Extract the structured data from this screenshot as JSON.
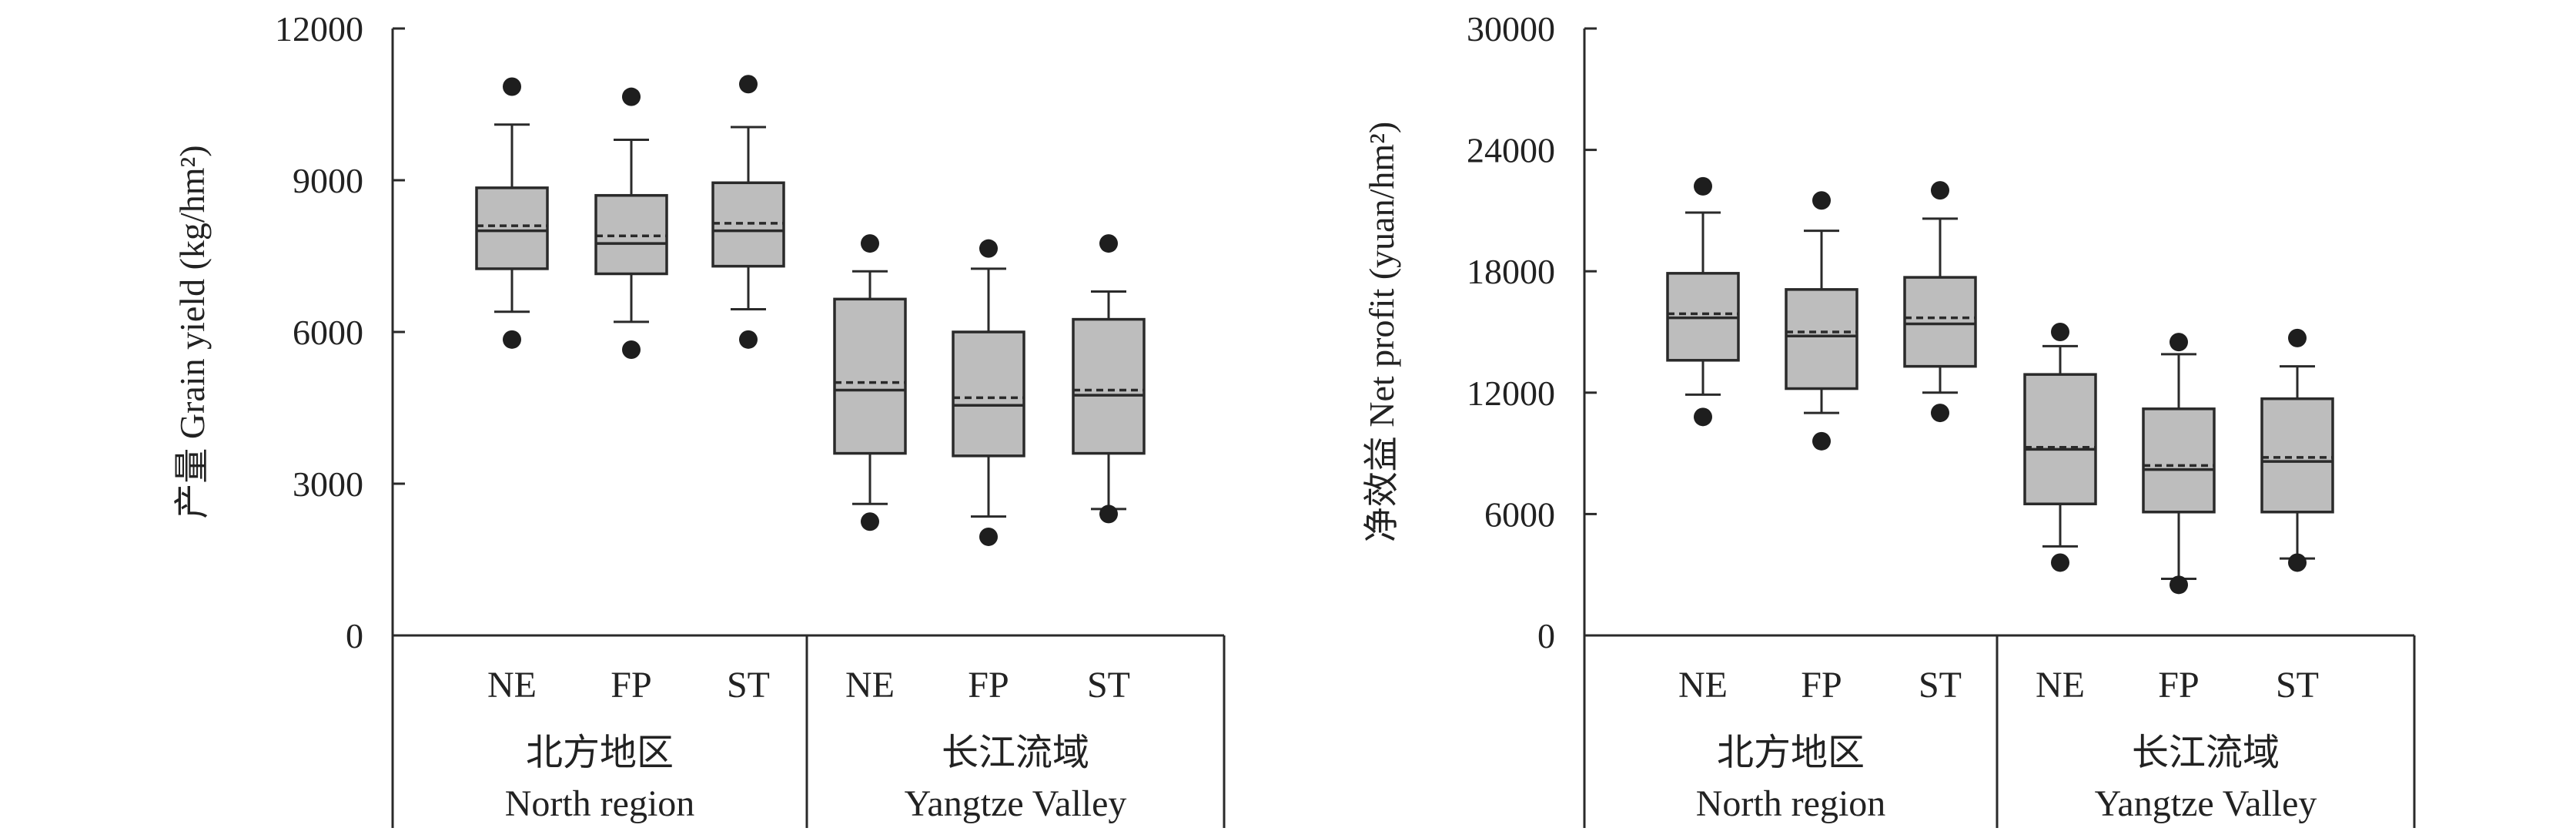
{
  "chart_data": [
    {
      "type": "box",
      "ylabel": "产量 Grain yield (kg/hm²)",
      "ylim": [
        0,
        12000
      ],
      "yticks": [
        0,
        3000,
        6000,
        9000,
        12000
      ],
      "groups": [
        {
          "label_zh": "北方地区",
          "label_en": "North region",
          "categories": [
            "NE",
            "FP",
            "ST"
          ]
        },
        {
          "label_zh": "长江流域",
          "label_en": "Yangtze Valley",
          "categories": [
            "NE",
            "FP",
            "ST"
          ]
        }
      ],
      "boxes": [
        {
          "group": 0,
          "category": "NE",
          "whisker_low": 6400,
          "q1": 7250,
          "median": 8000,
          "mean": 8100,
          "q3": 8850,
          "whisker_high": 10100,
          "outlier_low": 5850,
          "outlier_high": 10850
        },
        {
          "group": 0,
          "category": "FP",
          "whisker_low": 6200,
          "q1": 7150,
          "median": 7750,
          "mean": 7900,
          "q3": 8700,
          "whisker_high": 9800,
          "outlier_low": 5650,
          "outlier_high": 10650
        },
        {
          "group": 0,
          "category": "ST",
          "whisker_low": 6450,
          "q1": 7300,
          "median": 8000,
          "mean": 8150,
          "q3": 8950,
          "whisker_high": 10050,
          "outlier_low": 5850,
          "outlier_high": 10900
        },
        {
          "group": 1,
          "category": "NE",
          "whisker_low": 2600,
          "q1": 3600,
          "median": 4850,
          "mean": 5000,
          "q3": 6650,
          "whisker_high": 7200,
          "outlier_low": 2250,
          "outlier_high": 7750
        },
        {
          "group": 1,
          "category": "FP",
          "whisker_low": 2350,
          "q1": 3550,
          "median": 4550,
          "mean": 4700,
          "q3": 6000,
          "whisker_high": 7250,
          "outlier_low": 1950,
          "outlier_high": 7650
        },
        {
          "group": 1,
          "category": "ST",
          "whisker_low": 2500,
          "q1": 3600,
          "median": 4750,
          "mean": 4850,
          "q3": 6250,
          "whisker_high": 6800,
          "outlier_low": 2400,
          "outlier_high": 7750
        }
      ]
    },
    {
      "type": "box",
      "ylabel": "净效益 Net profit (yuan/hm²)",
      "ylim": [
        0,
        30000
      ],
      "yticks": [
        0,
        6000,
        12000,
        18000,
        24000,
        30000
      ],
      "groups": [
        {
          "label_zh": "北方地区",
          "label_en": "North region",
          "categories": [
            "NE",
            "FP",
            "ST"
          ]
        },
        {
          "label_zh": "长江流域",
          "label_en": "Yangtze Valley",
          "categories": [
            "NE",
            "FP",
            "ST"
          ]
        }
      ],
      "boxes": [
        {
          "group": 0,
          "category": "NE",
          "whisker_low": 11900,
          "q1": 13600,
          "median": 15700,
          "mean": 15900,
          "q3": 17900,
          "whisker_high": 20900,
          "outlier_low": 10800,
          "outlier_high": 22200
        },
        {
          "group": 0,
          "category": "FP",
          "whisker_low": 11000,
          "q1": 12200,
          "median": 14800,
          "mean": 15000,
          "q3": 17100,
          "whisker_high": 20000,
          "outlier_low": 9600,
          "outlier_high": 21500
        },
        {
          "group": 0,
          "category": "ST",
          "whisker_low": 12000,
          "q1": 13300,
          "median": 15400,
          "mean": 15700,
          "q3": 17700,
          "whisker_high": 20600,
          "outlier_low": 11000,
          "outlier_high": 22000
        },
        {
          "group": 1,
          "category": "NE",
          "whisker_low": 4400,
          "q1": 6500,
          "median": 9200,
          "mean": 9300,
          "q3": 12900,
          "whisker_high": 14300,
          "outlier_low": 3600,
          "outlier_high": 15000
        },
        {
          "group": 1,
          "category": "FP",
          "whisker_low": 2800,
          "q1": 6100,
          "median": 8200,
          "mean": 8400,
          "q3": 11200,
          "whisker_high": 13900,
          "outlier_low": 2500,
          "outlier_high": 14500
        },
        {
          "group": 1,
          "category": "ST",
          "whisker_low": 3800,
          "q1": 6100,
          "median": 8600,
          "mean": 8800,
          "q3": 11700,
          "whisker_high": 13300,
          "outlier_low": 3600,
          "outlier_high": 14700
        }
      ]
    }
  ],
  "colors": {
    "box_fill": "#bdbdbd",
    "stroke": "#2a2a2a",
    "outlier": "#1e1e1e",
    "text": "#222222"
  }
}
